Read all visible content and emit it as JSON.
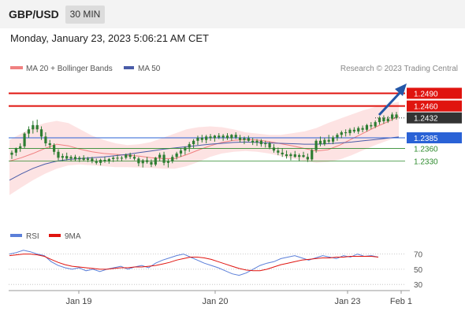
{
  "header": {
    "symbol": "GBP/USD",
    "timeframe": "30 MIN",
    "datetime": "Monday, January 23, 2023 5:06:21 AM CET"
  },
  "colors": {
    "candle": "#2e7d32",
    "bollinger_fill": "#fde3e3",
    "ma20": "#f08080",
    "ma50": "#4a5ca8",
    "resistance": "#e0140f",
    "support_blue": "#2a62d6",
    "support_green": "#2e8b2e",
    "current": "#333333",
    "rsi": "#5b7fd9",
    "rsi_ma": "#e0140f",
    "arrow": "#2457a8"
  },
  "chart_data": [
    {
      "type": "candlestick",
      "legend": [
        {
          "name": "MA 20 + Bollinger Bands",
          "color": "#f08080"
        },
        {
          "name": "MA 50",
          "color": "#4a5ca8"
        }
      ],
      "watermark": "Research © 2023 Trading Central",
      "ylim": [
        1.219,
        1.2515
      ],
      "x_ticks": [
        "Jan 19",
        "Jan 20",
        "Jan 23",
        "Feb 1"
      ],
      "levels": [
        {
          "value": 1.249,
          "label": "1.2490",
          "kind": "resistance"
        },
        {
          "value": 1.246,
          "label": "1.2460",
          "kind": "resistance"
        },
        {
          "value": 1.2432,
          "label": "1.2432",
          "kind": "current"
        },
        {
          "value": 1.2385,
          "label": "1.2385",
          "kind": "pivot"
        },
        {
          "value": 1.236,
          "label": "1.2360",
          "kind": "support"
        },
        {
          "value": 1.233,
          "label": "1.2330",
          "kind": "support"
        }
      ],
      "ohlc": [
        [
          1.2345,
          1.2355,
          1.2335,
          1.235
        ],
        [
          1.235,
          1.2362,
          1.2342,
          1.236
        ],
        [
          1.236,
          1.2372,
          1.2352,
          1.2365
        ],
        [
          1.2365,
          1.2398,
          1.236,
          1.2395
        ],
        [
          1.2395,
          1.2412,
          1.2385,
          1.2405
        ],
        [
          1.2405,
          1.2425,
          1.2395,
          1.2415
        ],
        [
          1.2415,
          1.2428,
          1.2398,
          1.2405
        ],
        [
          1.2405,
          1.2412,
          1.238,
          1.2388
        ],
        [
          1.2388,
          1.2398,
          1.2365,
          1.2372
        ],
        [
          1.2372,
          1.238,
          1.236,
          1.2368
        ],
        [
          1.2368,
          1.2372,
          1.2345,
          1.2352
        ],
        [
          1.2352,
          1.2358,
          1.2332,
          1.2338
        ],
        [
          1.2338,
          1.2348,
          1.233,
          1.2342
        ],
        [
          1.2342,
          1.235,
          1.2332,
          1.2336
        ],
        [
          1.2336,
          1.2344,
          1.233,
          1.234
        ],
        [
          1.234,
          1.2345,
          1.233,
          1.2334
        ],
        [
          1.2334,
          1.2342,
          1.2328,
          1.2338
        ],
        [
          1.2338,
          1.2344,
          1.233,
          1.2333
        ],
        [
          1.2333,
          1.234,
          1.2328,
          1.2336
        ],
        [
          1.2336,
          1.234,
          1.2325,
          1.233
        ],
        [
          1.233,
          1.2336,
          1.2322,
          1.2326
        ],
        [
          1.2326,
          1.2336,
          1.232,
          1.2333
        ],
        [
          1.2333,
          1.234,
          1.2326,
          1.233
        ],
        [
          1.233,
          1.2338,
          1.2324,
          1.2335
        ],
        [
          1.2335,
          1.2342,
          1.2328,
          1.2338
        ],
        [
          1.2338,
          1.2345,
          1.233,
          1.2336
        ],
        [
          1.2336,
          1.2342,
          1.233,
          1.2338
        ],
        [
          1.2338,
          1.2348,
          1.2334,
          1.2345
        ],
        [
          1.2345,
          1.235,
          1.2335,
          1.234
        ],
        [
          1.234,
          1.2346,
          1.2332,
          1.2336
        ],
        [
          1.2336,
          1.234,
          1.2318,
          1.2325
        ],
        [
          1.2325,
          1.2335,
          1.2315,
          1.2332
        ],
        [
          1.2332,
          1.234,
          1.2324,
          1.2328
        ],
        [
          1.2328,
          1.2334,
          1.2316,
          1.2322
        ],
        [
          1.2322,
          1.234,
          1.2318,
          1.2338
        ],
        [
          1.2338,
          1.235,
          1.233,
          1.2345
        ],
        [
          1.2345,
          1.2352,
          1.232,
          1.2326
        ],
        [
          1.2326,
          1.2335,
          1.2315,
          1.233
        ],
        [
          1.233,
          1.2345,
          1.2325,
          1.234
        ],
        [
          1.234,
          1.2352,
          1.2334,
          1.2348
        ],
        [
          1.2348,
          1.236,
          1.234,
          1.2355
        ],
        [
          1.2355,
          1.2365,
          1.2345,
          1.2362
        ],
        [
          1.2362,
          1.2375,
          1.2352,
          1.237
        ],
        [
          1.237,
          1.2382,
          1.236,
          1.2378
        ],
        [
          1.2378,
          1.239,
          1.2368,
          1.2385
        ],
        [
          1.2385,
          1.2392,
          1.2374,
          1.238
        ],
        [
          1.238,
          1.2392,
          1.2372,
          1.2388
        ],
        [
          1.2388,
          1.2394,
          1.2378,
          1.2384
        ],
        [
          1.2384,
          1.2392,
          1.2376,
          1.239
        ],
        [
          1.239,
          1.2396,
          1.2382,
          1.2386
        ],
        [
          1.2386,
          1.2394,
          1.2378,
          1.239
        ],
        [
          1.239,
          1.2396,
          1.238,
          1.2384
        ],
        [
          1.2384,
          1.2394,
          1.2378,
          1.2392
        ],
        [
          1.2392,
          1.2398,
          1.2382,
          1.2386
        ],
        [
          1.2386,
          1.2392,
          1.2374,
          1.238
        ],
        [
          1.238,
          1.2388,
          1.237,
          1.2384
        ],
        [
          1.2384,
          1.239,
          1.2376,
          1.2378
        ],
        [
          1.2378,
          1.2385,
          1.2368,
          1.2374
        ],
        [
          1.2374,
          1.2382,
          1.2366,
          1.2378
        ],
        [
          1.2378,
          1.2382,
          1.2364,
          1.237
        ],
        [
          1.237,
          1.2378,
          1.2362,
          1.2372
        ],
        [
          1.2372,
          1.2376,
          1.2358,
          1.2362
        ],
        [
          1.2362,
          1.237,
          1.235,
          1.2355
        ],
        [
          1.2355,
          1.2362,
          1.2344,
          1.235
        ],
        [
          1.235,
          1.236,
          1.234,
          1.2346
        ],
        [
          1.2346,
          1.2355,
          1.2336,
          1.2342
        ],
        [
          1.2342,
          1.235,
          1.2332,
          1.2346
        ],
        [
          1.2346,
          1.2354,
          1.2338,
          1.234
        ],
        [
          1.234,
          1.2348,
          1.233,
          1.2344
        ],
        [
          1.2344,
          1.2352,
          1.2338,
          1.234
        ],
        [
          1.234,
          1.2348,
          1.2328,
          1.2334
        ],
        [
          1.2334,
          1.236,
          1.233,
          1.2356
        ],
        [
          1.2356,
          1.2382,
          1.235,
          1.2378
        ],
        [
          1.2378,
          1.2388,
          1.2365,
          1.237
        ],
        [
          1.237,
          1.2385,
          1.2366,
          1.238
        ],
        [
          1.238,
          1.2392,
          1.2372,
          1.2376
        ],
        [
          1.2376,
          1.239,
          1.237,
          1.2386
        ],
        [
          1.2386,
          1.2396,
          1.2378,
          1.2392
        ],
        [
          1.2392,
          1.2402,
          1.2384,
          1.2398
        ],
        [
          1.2398,
          1.2405,
          1.2388,
          1.2396
        ],
        [
          1.2396,
          1.2408,
          1.239,
          1.2404
        ],
        [
          1.2404,
          1.241,
          1.2396,
          1.24
        ],
        [
          1.24,
          1.2412,
          1.2394,
          1.2408
        ],
        [
          1.2408,
          1.2414,
          1.2398,
          1.2404
        ],
        [
          1.2404,
          1.2418,
          1.24,
          1.2415
        ],
        [
          1.2415,
          1.2422,
          1.2406,
          1.2412
        ],
        [
          1.2412,
          1.2426,
          1.2408,
          1.2422
        ],
        [
          1.2422,
          1.2436,
          1.2416,
          1.2432
        ],
        [
          1.2432,
          1.2438,
          1.2418,
          1.2424
        ],
        [
          1.2424,
          1.2436,
          1.242,
          1.243
        ],
        [
          1.243,
          1.2445,
          1.2425,
          1.244
        ],
        [
          1.244,
          1.2446,
          1.2428,
          1.2432
        ]
      ],
      "ma20": [
        1.233,
        1.2338,
        1.2348,
        1.236,
        1.237,
        1.2366,
        1.2358,
        1.2352,
        1.2348,
        1.2346,
        1.2344,
        1.2342,
        1.2338,
        1.2336,
        1.2336,
        1.2345,
        1.2356,
        1.2366,
        1.2374,
        1.2379,
        1.2381,
        1.238,
        1.2376,
        1.2371,
        1.2366,
        1.236,
        1.2354,
        1.2357,
        1.2368,
        1.2382,
        1.2396,
        1.241,
        1.2422,
        1.2436
      ],
      "ma50": [
        1.2285,
        1.23,
        1.2313,
        1.2323,
        1.233,
        1.2334,
        1.2336,
        1.2338,
        1.234,
        1.2343,
        1.2346,
        1.235,
        1.2354,
        1.2358,
        1.2361,
        1.2364,
        1.2367,
        1.237,
        1.2372,
        1.2374,
        1.2375,
        1.2374,
        1.2373,
        1.2372,
        1.2371,
        1.237,
        1.237,
        1.2371,
        1.2373,
        1.2375,
        1.2378,
        1.2381,
        1.2384,
        1.2387
      ],
      "bb_upper": [
        1.238,
        1.2395,
        1.241,
        1.242,
        1.2425,
        1.242,
        1.2405,
        1.239,
        1.238,
        1.2372,
        1.2368,
        1.237,
        1.2375,
        1.2385,
        1.2395,
        1.2405,
        1.241,
        1.2412,
        1.241,
        1.2405,
        1.2398,
        1.2395,
        1.2392,
        1.2392,
        1.2396,
        1.24,
        1.2408,
        1.242,
        1.243,
        1.244,
        1.245,
        1.2458,
        1.2464,
        1.247
      ],
      "bb_lower": [
        1.225,
        1.2268,
        1.2285,
        1.23,
        1.2312,
        1.232,
        1.2322,
        1.232,
        1.2318,
        1.2316,
        1.2316,
        1.2315,
        1.2314,
        1.2312,
        1.2312,
        1.2318,
        1.2328,
        1.234,
        1.2348,
        1.2352,
        1.2354,
        1.2352,
        1.2348,
        1.2342,
        1.2336,
        1.233,
        1.2326,
        1.2328,
        1.2334,
        1.2344,
        1.2356,
        1.2368,
        1.2378,
        1.2388
      ]
    },
    {
      "type": "line",
      "legend": [
        {
          "name": "RSI",
          "color": "#5b7fd9"
        },
        {
          "name": "9MA",
          "color": "#e0140f"
        }
      ],
      "ylim": [
        25,
        80
      ],
      "y_ticks": [
        70,
        50,
        30
      ],
      "series": [
        {
          "name": "RSI",
          "values": [
            70,
            72,
            75,
            73,
            70,
            68,
            60,
            55,
            52,
            50,
            52,
            48,
            50,
            47,
            50,
            52,
            54,
            50,
            53,
            55,
            52,
            58,
            62,
            65,
            68,
            70,
            66,
            62,
            58,
            55,
            52,
            48,
            44,
            42,
            45,
            50,
            55,
            58,
            60,
            64,
            66,
            68,
            65,
            62,
            65,
            68,
            66,
            64,
            68,
            66,
            70,
            67,
            68,
            66
          ]
        },
        {
          "name": "9MA",
          "values": [
            68,
            69,
            70,
            70,
            69,
            67,
            63,
            59,
            56,
            54,
            53,
            52,
            51,
            50,
            50,
            51,
            52,
            52,
            53,
            53,
            54,
            55,
            57,
            59,
            62,
            64,
            66,
            66,
            65,
            63,
            60,
            57,
            54,
            51,
            49,
            48,
            48,
            50,
            53,
            56,
            58,
            60,
            62,
            63,
            64,
            65,
            65,
            66,
            66,
            67,
            67,
            67,
            67,
            66
          ]
        }
      ]
    }
  ]
}
